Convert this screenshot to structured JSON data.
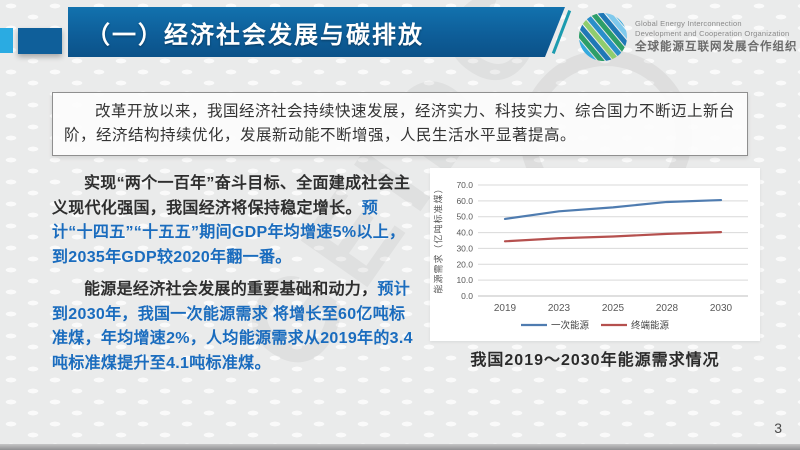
{
  "slide": {
    "page_number": "3",
    "watermark": "GEIDCO",
    "header": {
      "title": "（一）经济社会发展与碳排放"
    },
    "logo": {
      "en_line1": "Global Energy Interconnection",
      "en_line2": "Development and Cooperation Organization",
      "zh": "全球能源互联网发展合作组织"
    },
    "intro_box": {
      "text": "改革开放以来，我国经济社会持续快速发展，经济实力、科技实力、综合国力不断迈上新台阶，经济结构持续优化，发展新动能不断增强，人民生活水平显著提高。"
    },
    "paragraphs": [
      {
        "normal": "实现“两个一百年”奋斗目标、全面建成社会主义现代化强国，我国经济将保持稳定增长。",
        "emphasis": "预计“十四五”“十五五”期间GDP年均增速5%以上，到2035年GDP较2020年翻一番。"
      },
      {
        "normal": "能源是经济社会发展的重要基础和动力，",
        "emphasis": "预计到2030年，我国一次能源需求 将增长至60亿吨标准煤，年均增速2%，人均能源需求从2019年的3.4吨标准煤提升至4.1吨标准煤。"
      }
    ],
    "chart_caption": "我国2019～2030年能源需求情况"
  },
  "colors": {
    "banner_blue": "#0e5e99",
    "accent_light_blue": "#2aabe2",
    "accent_teal": "#1b9baf",
    "emphasis_blue": "#1a6cbe",
    "series_primary": "#4f7cb0",
    "series_terminal": "#b5504e",
    "gridline": "#d9d9d9",
    "tick_text": "#595959"
  },
  "chart_data": {
    "type": "line",
    "categories": [
      "2019",
      "2023",
      "2025",
      "2028",
      "2030"
    ],
    "series": [
      {
        "name": "一次能源",
        "color": "#4f7cb0",
        "values": [
          48.6,
          53.4,
          55.9,
          59.3,
          60.5
        ]
      },
      {
        "name": "终端能源",
        "color": "#b5504e",
        "values": [
          34.5,
          36.4,
          37.5,
          39.2,
          40.3
        ]
      }
    ],
    "title": "",
    "xlabel": "",
    "ylabel": "能源需求（亿吨标准煤）",
    "ylim": [
      0,
      70
    ],
    "ytick_step": 10,
    "ytick_format": "one_decimal",
    "grid": true,
    "legend_position": "bottom"
  }
}
